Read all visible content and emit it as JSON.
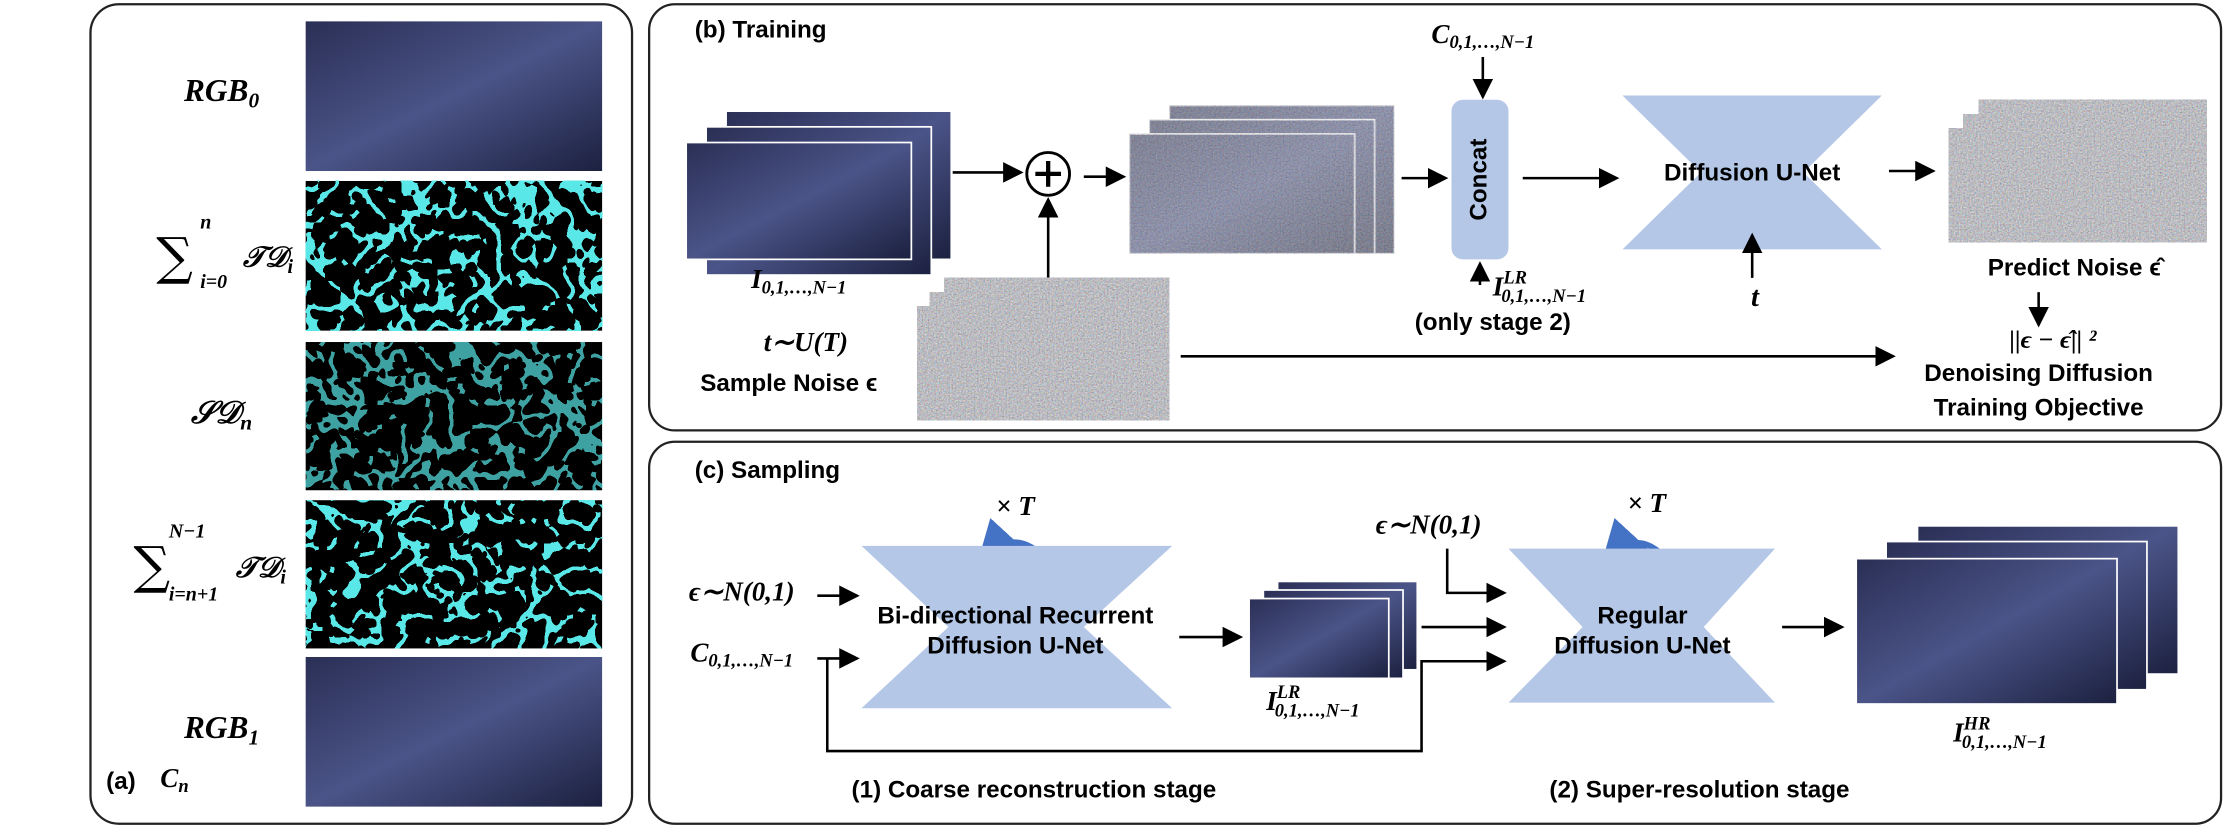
{
  "panel_a": {
    "label": "(a)",
    "rows": [
      {
        "main": "RGB",
        "sub": "0"
      },
      {
        "sum": "∑",
        "sup": "n",
        "sub": "i=0",
        "main": "𝒯𝒟",
        "main_sub": "i"
      },
      {
        "main": "𝒮𝒟",
        "sub": "n"
      },
      {
        "sum": "∑",
        "sup": "N−1",
        "sub": "i=n+1",
        "main": "𝒯𝒟",
        "main_sub": "i"
      },
      {
        "main": "RGB",
        "sub": "1"
      }
    ],
    "caption": {
      "main": "C",
      "sub": "n"
    }
  },
  "panel_b": {
    "title": "(b) Training",
    "input": {
      "main": "I",
      "sub": "0,1,…,N−1"
    },
    "condition": {
      "main": "C",
      "sub": "0,1,…,N−1"
    },
    "concat": "Concat",
    "unet": "Diffusion U-Net",
    "lr_input": {
      "main": "I",
      "sup": "LR",
      "sub": "0,1,…,N−1"
    },
    "lr_note": "(only stage 2)",
    "timestep": "t",
    "t_sample": "t∼U(T)",
    "sample_noise": "Sample Noise ϵ",
    "predict_noise": "Predict Noise ϵ̂",
    "loss": "||ϵ − ϵ̂|| ²",
    "objective": [
      "Denoising Diffusion",
      "Training Objective"
    ]
  },
  "panel_c": {
    "title": "(c) Sampling",
    "repeat_1": "× T",
    "repeat_2": "× T",
    "noise_1": "ϵ∼N(0,1)",
    "condition": {
      "main": "C",
      "sub": "0,1,…,N−1"
    },
    "unet_1": [
      "Bi-directional  Recurrent",
      "Diffusion  U-Net"
    ],
    "lr_output": {
      "main": "I",
      "sup": "LR",
      "sub": "0,1,…,N−1"
    },
    "noise_2": "ϵ∼N(0,1)",
    "unet_2": [
      "Regular",
      "Diffusion  U-Net"
    ],
    "hr_output": {
      "main": "I",
      "sup": "HR",
      "sub": "0,1,…,N−1"
    },
    "stage_1": "(1) Coarse reconstruction stage",
    "stage_2": "(2) Super-resolution stage"
  }
}
